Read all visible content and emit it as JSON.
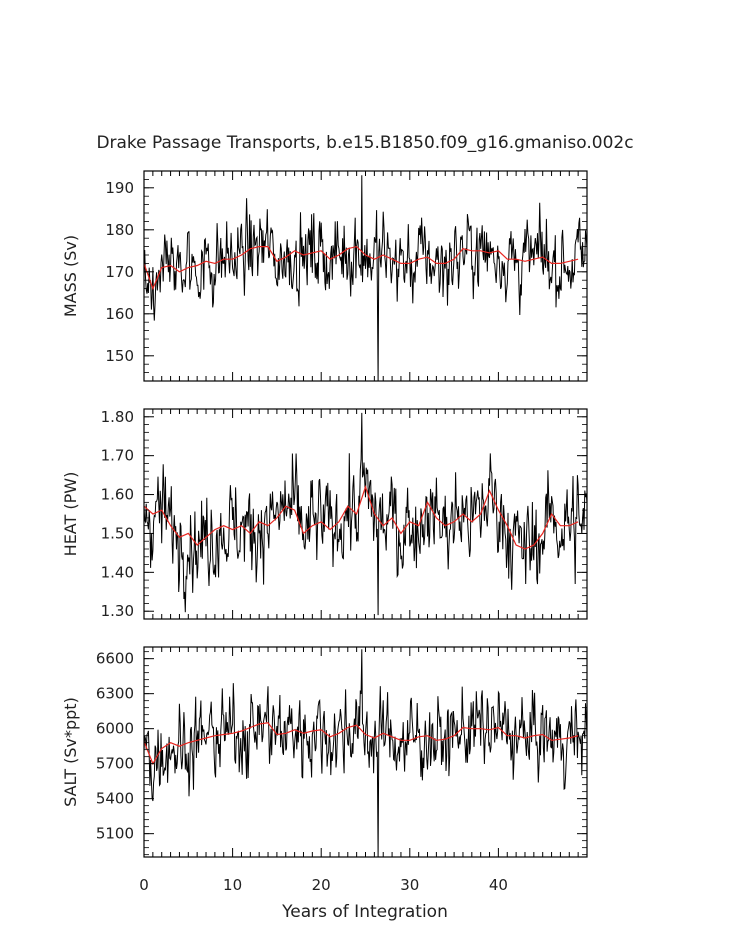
{
  "title": "Drake Passage Transports, b.e15.B1850.f09_g16.gmaniso.002c",
  "xlabel": "Years of Integration",
  "colors": {
    "raw": "#000000",
    "smooth": "#e8251f",
    "axis": "#000000"
  },
  "chart_data": [
    {
      "type": "line",
      "ylabel": "MASS (Sv)",
      "xlim": [
        0,
        50
      ],
      "ylim": [
        144,
        194
      ],
      "x_ticks": [
        0,
        10,
        20,
        30,
        40
      ],
      "y_ticks": [
        "150",
        "160",
        "170",
        "180",
        "190"
      ],
      "raw_stats": {
        "mean": 172.5,
        "sd": 7.2,
        "min": 144,
        "max": 193
      },
      "series": [
        {
          "x": [
            0,
            1,
            2,
            3,
            4,
            5,
            6,
            7,
            8,
            9,
            10,
            11,
            12,
            13,
            14,
            15,
            16,
            17,
            18,
            19,
            20,
            21,
            22,
            23,
            24,
            25,
            26,
            27,
            28,
            29,
            30,
            31,
            32,
            33,
            34,
            35,
            36,
            37,
            38,
            39,
            40,
            41,
            42,
            43,
            44,
            45,
            46,
            47,
            48,
            49
          ],
          "values": [
            172,
            166,
            171,
            171.5,
            170,
            171,
            171.5,
            172.5,
            172,
            173,
            173,
            174,
            175.5,
            176,
            176,
            172.5,
            173.5,
            175,
            174,
            174.5,
            175,
            173,
            174,
            175.5,
            176,
            174,
            173,
            174,
            173,
            172,
            172,
            173,
            173.5,
            172,
            172,
            173,
            175.5,
            175,
            175,
            174.5,
            175,
            173,
            173,
            172.5,
            173,
            173.5,
            172,
            172,
            172.5,
            173
          ]
        }
      ]
    },
    {
      "type": "line",
      "ylabel": "HEAT (PW)",
      "xlim": [
        0,
        50
      ],
      "ylim": [
        1.28,
        1.82
      ],
      "x_ticks": [
        0,
        10,
        20,
        30,
        40
      ],
      "y_ticks": [
        "1.30",
        "1.40",
        "1.50",
        "1.60",
        "1.70",
        "1.80"
      ],
      "raw_stats": {
        "mean": 1.53,
        "sd": 0.09,
        "min": 1.29,
        "max": 1.81
      },
      "series": [
        {
          "x": [
            0,
            1,
            2,
            3,
            4,
            5,
            6,
            7,
            8,
            9,
            10,
            11,
            12,
            13,
            14,
            15,
            16,
            17,
            18,
            19,
            20,
            21,
            22,
            23,
            24,
            25,
            26,
            27,
            28,
            29,
            30,
            31,
            32,
            33,
            34,
            35,
            36,
            37,
            38,
            39,
            40,
            41,
            42,
            43,
            44,
            45,
            46,
            47,
            48,
            49
          ],
          "values": [
            1.57,
            1.55,
            1.56,
            1.52,
            1.49,
            1.5,
            1.47,
            1.49,
            1.51,
            1.52,
            1.51,
            1.52,
            1.5,
            1.53,
            1.52,
            1.54,
            1.57,
            1.56,
            1.5,
            1.52,
            1.53,
            1.51,
            1.53,
            1.57,
            1.55,
            1.62,
            1.55,
            1.52,
            1.54,
            1.5,
            1.53,
            1.52,
            1.58,
            1.54,
            1.52,
            1.53,
            1.55,
            1.53,
            1.55,
            1.61,
            1.56,
            1.52,
            1.47,
            1.46,
            1.47,
            1.5,
            1.55,
            1.52,
            1.52,
            1.53
          ]
        }
      ]
    },
    {
      "type": "line",
      "ylabel": "SALT (Sv*ppt)",
      "xlim": [
        0,
        50
      ],
      "ylim": [
        4900,
        6700
      ],
      "x_ticks": [
        0,
        10,
        20,
        30,
        40
      ],
      "x_tick_labels": [
        "0",
        "10",
        "20",
        "30",
        "40"
      ],
      "y_ticks": [
        "5100",
        "5400",
        "5700",
        "6000",
        "6300",
        "6600"
      ],
      "raw_stats": {
        "mean": 5930,
        "sd": 260,
        "min": 4900,
        "max": 6680
      },
      "series": [
        {
          "x": [
            0,
            1,
            2,
            3,
            4,
            5,
            6,
            7,
            8,
            9,
            10,
            11,
            12,
            13,
            14,
            15,
            16,
            17,
            18,
            19,
            20,
            21,
            22,
            23,
            24,
            25,
            26,
            27,
            28,
            29,
            30,
            31,
            32,
            33,
            34,
            35,
            36,
            37,
            38,
            39,
            40,
            41,
            42,
            43,
            44,
            45,
            46,
            47,
            48,
            49
          ],
          "values": [
            5890,
            5700,
            5830,
            5880,
            5850,
            5880,
            5900,
            5920,
            5940,
            5950,
            5960,
            5980,
            6010,
            6040,
            6050,
            5950,
            5960,
            5990,
            5960,
            5980,
            5990,
            5930,
            5960,
            6010,
            6030,
            5950,
            5920,
            5960,
            5930,
            5900,
            5900,
            5930,
            5940,
            5900,
            5910,
            5940,
            6010,
            6000,
            6000,
            5990,
            6010,
            5940,
            5940,
            5920,
            5940,
            5950,
            5900,
            5910,
            5920,
            5940
          ]
        }
      ]
    }
  ]
}
